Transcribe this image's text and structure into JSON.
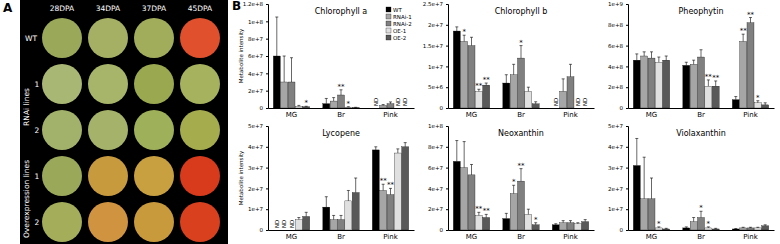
{
  "panel_a": {
    "label": "A",
    "columns": [
      "28DPA",
      "34DPA",
      "37DPA",
      "45DPA"
    ],
    "groups": [
      {
        "name": "WT",
        "lines": []
      },
      {
        "name": "RNAi lines",
        "lines": [
          "1",
          "2"
        ]
      },
      {
        "name": "Overexpression lines",
        "lines": [
          "1",
          "2"
        ]
      }
    ]
  },
  "panel_b": {
    "label": "B"
  },
  "chart_data": [
    {
      "type": "bar",
      "title": "Chlorophyll a",
      "y_label": "Metabolite intensity",
      "legend": "top-right",
      "categories": [
        "MG",
        "Br",
        "Pink"
      ],
      "series": [
        {
          "name": "WT",
          "color": "#000000",
          "values": [
            60000000,
            5000000,
            null
          ],
          "errors": [
            45000000,
            6000000,
            null
          ]
        },
        {
          "name": "RNAi-1",
          "color": "#a6a6a6",
          "values": [
            30000000,
            8000000,
            3000000
          ],
          "errors": [
            30000000,
            4000000,
            1000000
          ]
        },
        {
          "name": "RNAi-2",
          "color": "#808080",
          "values": [
            30000000,
            15000000,
            5000000
          ],
          "errors": [
            28000000,
            6000000,
            2000000
          ]
        },
        {
          "name": "OE-1",
          "color": "#e0e0e0",
          "values": [
            2000000,
            1000000,
            null
          ],
          "errors": [
            1000000,
            500000,
            null
          ]
        },
        {
          "name": "OE-2",
          "color": "#595959",
          "values": [
            1500000,
            500000,
            null
          ],
          "errors": [
            500000,
            300000,
            null
          ]
        }
      ],
      "ylim": [
        0,
        120000000
      ],
      "yticks": [
        0,
        {
          "value": 20000000,
          "label": "2e+7"
        },
        {
          "value": 40000000,
          "label": "4e+7"
        },
        {
          "value": 60000000,
          "label": "6e+7"
        },
        {
          "value": 80000000,
          "label": "8e+7"
        },
        {
          "value": 100000000,
          "label": "1e+8"
        },
        {
          "value": 120000000,
          "label": "1.2e+8"
        }
      ],
      "annotations": [
        {
          "text": "*",
          "category": "MG",
          "series": "OE-2"
        },
        {
          "text": "**",
          "category": "Br",
          "series": "RNAi-2"
        },
        {
          "text": "*",
          "category": "Br",
          "series": "OE-1"
        },
        {
          "text": "ND",
          "category": "Pink",
          "series": "WT"
        },
        {
          "text": "ND",
          "category": "Pink",
          "series": "OE-1"
        },
        {
          "text": "ND",
          "category": "Pink",
          "series": "OE-2"
        }
      ]
    },
    {
      "type": "bar",
      "title": "Chlorophyll b",
      "categories": [
        "MG",
        "Br",
        "Pink"
      ],
      "series": [
        {
          "name": "WT",
          "color": "#000000",
          "values": [
            18500000,
            6000000,
            null
          ],
          "errors": [
            1000000,
            2000000,
            null
          ]
        },
        {
          "name": "RNAi-1",
          "color": "#a6a6a6",
          "values": [
            16000000,
            8000000,
            4000000
          ],
          "errors": [
            1500000,
            2500000,
            3000000
          ]
        },
        {
          "name": "RNAi-2",
          "color": "#808080",
          "values": [
            15000000,
            12000000,
            7500000
          ],
          "errors": [
            2000000,
            3000000,
            3000000
          ]
        },
        {
          "name": "OE-1",
          "color": "#e0e0e0",
          "values": [
            4000000,
            4000000,
            null
          ],
          "errors": [
            500000,
            1000000,
            null
          ]
        },
        {
          "name": "OE-2",
          "color": "#595959",
          "values": [
            5500000,
            1000000,
            null
          ],
          "errors": [
            500000,
            500000,
            null
          ]
        }
      ],
      "ylim": [
        0,
        25000000
      ],
      "yticks": [
        0,
        {
          "value": 5000000,
          "label": "5e+6"
        },
        {
          "value": 10000000,
          "label": "1e+7"
        },
        {
          "value": 15000000,
          "label": "1.5e+7"
        },
        {
          "value": 20000000,
          "label": "2e+7"
        },
        {
          "value": 25000000,
          "label": "2.5e+7"
        }
      ],
      "annotations": [
        {
          "text": "*",
          "category": "MG",
          "series": "RNAi-1"
        },
        {
          "text": "**",
          "category": "MG",
          "series": "OE-1"
        },
        {
          "text": "**",
          "category": "MG",
          "series": "OE-2"
        },
        {
          "text": "*",
          "category": "Br",
          "series": "RNAi-2"
        },
        {
          "text": "ND",
          "category": "Pink",
          "series": "WT"
        },
        {
          "text": "ND",
          "category": "Pink",
          "series": "OE-1"
        },
        {
          "text": "ND",
          "category": "Pink",
          "series": "OE-2"
        }
      ]
    },
    {
      "type": "bar",
      "title": "Pheophytin",
      "categories": [
        "MG",
        "Br",
        "Pink"
      ],
      "series": [
        {
          "name": "WT",
          "color": "#000000",
          "values": [
            460000000,
            410000000,
            80000000
          ],
          "errors": [
            60000000,
            30000000,
            30000000
          ]
        },
        {
          "name": "RNAi-1",
          "color": "#a6a6a6",
          "values": [
            500000000,
            420000000,
            640000000
          ],
          "errors": [
            40000000,
            40000000,
            70000000
          ]
        },
        {
          "name": "RNAi-2",
          "color": "#808080",
          "values": [
            480000000,
            490000000,
            820000000
          ],
          "errors": [
            60000000,
            70000000,
            50000000
          ]
        },
        {
          "name": "OE-1",
          "color": "#e0e0e0",
          "values": [
            440000000,
            210000000,
            50000000
          ],
          "errors": [
            50000000,
            60000000,
            20000000
          ]
        },
        {
          "name": "OE-2",
          "color": "#595959",
          "values": [
            460000000,
            210000000,
            30000000
          ],
          "errors": [
            40000000,
            50000000,
            20000000
          ]
        }
      ],
      "ylim": [
        0,
        1000000000
      ],
      "yticks": [
        0,
        {
          "value": 200000000,
          "label": "2e+8"
        },
        {
          "value": 400000000,
          "label": "4e+8"
        },
        {
          "value": 600000000,
          "label": "6e+8"
        },
        {
          "value": 800000000,
          "label": "8e+8"
        },
        {
          "value": 1000000000,
          "label": "1e+9"
        }
      ],
      "annotations": [
        {
          "text": "**",
          "category": "Br",
          "series": "OE-1"
        },
        {
          "text": "**",
          "category": "Br",
          "series": "OE-2"
        },
        {
          "text": "**",
          "category": "Pink",
          "series": "RNAi-1"
        },
        {
          "text": "**",
          "category": "Pink",
          "series": "RNAi-2"
        },
        {
          "text": "*",
          "category": "Pink",
          "series": "OE-1"
        }
      ]
    },
    {
      "type": "bar",
      "title": "Lycopene",
      "y_label": "Metabolite intensity",
      "categories": [
        "MG",
        "Br",
        "Pink"
      ],
      "series": [
        {
          "name": "WT",
          "color": "#000000",
          "values": [
            null,
            11000000,
            38500000
          ],
          "errors": [
            null,
            5000000,
            1500000
          ]
        },
        {
          "name": "RNAi-1",
          "color": "#a6a6a6",
          "values": [
            null,
            5000000,
            19000000
          ],
          "errors": [
            null,
            2000000,
            3000000
          ]
        },
        {
          "name": "RNAi-2",
          "color": "#808080",
          "values": [
            null,
            5000000,
            17000000
          ],
          "errors": [
            null,
            2000000,
            3000000
          ]
        },
        {
          "name": "OE-1",
          "color": "#e0e0e0",
          "values": [
            5000000,
            14000000,
            37000000
          ],
          "errors": [
            1000000,
            5000000,
            2000000
          ]
        },
        {
          "name": "OE-2",
          "color": "#595959",
          "values": [
            6500000,
            18000000,
            40000000
          ],
          "errors": [
            2000000,
            7000000,
            2000000
          ]
        }
      ],
      "ylim": [
        0,
        50000000
      ],
      "yticks": [
        0,
        {
          "value": 10000000,
          "label": "1e+7"
        },
        {
          "value": 20000000,
          "label": "2e+7"
        },
        {
          "value": 30000000,
          "label": "3e+7"
        },
        {
          "value": 40000000,
          "label": "4e+7"
        },
        {
          "value": 50000000,
          "label": "5e+7"
        }
      ],
      "annotations": [
        {
          "text": "ND",
          "category": "MG",
          "series": "WT"
        },
        {
          "text": "ND",
          "category": "MG",
          "series": "RNAi-1"
        },
        {
          "text": "ND",
          "category": "MG",
          "series": "RNAi-2"
        },
        {
          "text": "**",
          "category": "Pink",
          "series": "RNAi-1"
        },
        {
          "text": "**",
          "category": "Pink",
          "series": "RNAi-2"
        }
      ]
    },
    {
      "type": "bar",
      "title": "Neoxanthin",
      "categories": [
        "MG",
        "Br",
        "Pink"
      ],
      "series": [
        {
          "name": "WT",
          "color": "#000000",
          "values": [
            66000000,
            11000000,
            5000000
          ],
          "errors": [
            20000000,
            5000000,
            1000000
          ]
        },
        {
          "name": "RNAi-1",
          "color": "#a6a6a6",
          "values": [
            60000000,
            35000000,
            7000000
          ],
          "errors": [
            25000000,
            8000000,
            2000000
          ]
        },
        {
          "name": "RNAi-2",
          "color": "#808080",
          "values": [
            53000000,
            47000000,
            7000000
          ],
          "errors": [
            10000000,
            12000000,
            2000000
          ]
        },
        {
          "name": "OE-1",
          "color": "#e0e0e0",
          "values": [
            14000000,
            15000000,
            6000000
          ],
          "errors": [
            3000000,
            5000000,
            1000000
          ]
        },
        {
          "name": "OE-2",
          "color": "#595959",
          "values": [
            12000000,
            5000000,
            8000000
          ],
          "errors": [
            3000000,
            2000000,
            2000000
          ]
        }
      ],
      "ylim": [
        0,
        100000000
      ],
      "yticks": [
        0,
        {
          "value": 20000000,
          "label": "2e+7"
        },
        {
          "value": 40000000,
          "label": "4e+7"
        },
        {
          "value": 60000000,
          "label": "6e+7"
        },
        {
          "value": 80000000,
          "label": "8e+7"
        },
        {
          "value": 100000000,
          "label": "1e+8"
        }
      ],
      "annotations": [
        {
          "text": "**",
          "category": "MG",
          "series": "OE-1"
        },
        {
          "text": "**",
          "category": "MG",
          "series": "OE-2"
        },
        {
          "text": "*",
          "category": "Br",
          "series": "RNAi-1"
        },
        {
          "text": "**",
          "category": "Br",
          "series": "RNAi-2"
        },
        {
          "text": "*",
          "category": "Br",
          "series": "OE-2"
        }
      ]
    },
    {
      "type": "bar",
      "title": "Violaxanthin",
      "categories": [
        "MG",
        "Br",
        "Pink"
      ],
      "series": [
        {
          "name": "WT",
          "color": "#000000",
          "values": [
            31000000,
            1000000,
            500000
          ],
          "errors": [
            13000000,
            500000,
            200000
          ]
        },
        {
          "name": "RNAi-1",
          "color": "#a6a6a6",
          "values": [
            15000000,
            4000000,
            1000000
          ],
          "errors": [
            20000000,
            2000000,
            300000
          ]
        },
        {
          "name": "RNAi-2",
          "color": "#808080",
          "values": [
            15000000,
            6000000,
            1000000
          ],
          "errors": [
            10000000,
            3000000,
            300000
          ]
        },
        {
          "name": "OE-1",
          "color": "#e0e0e0",
          "values": [
            1000000,
            1000000,
            1000000
          ],
          "errors": [
            500000,
            500000,
            300000
          ]
        },
        {
          "name": "OE-2",
          "color": "#595959",
          "values": [
            500000,
            500000,
            2000000
          ],
          "errors": [
            300000,
            300000,
            500000
          ]
        }
      ],
      "ylim": [
        0,
        50000000
      ],
      "yticks": [
        0,
        {
          "value": 10000000,
          "label": "1e+7"
        },
        {
          "value": 20000000,
          "label": "2e+7"
        },
        {
          "value": 30000000,
          "label": "3e+7"
        },
        {
          "value": 40000000,
          "label": "4e+7"
        },
        {
          "value": 50000000,
          "label": "5e+7"
        }
      ],
      "annotations": [
        {
          "text": "*",
          "category": "MG",
          "series": "OE-1"
        },
        {
          "text": "*",
          "category": "Br",
          "series": "RNAi-2"
        },
        {
          "text": "*",
          "category": "Br",
          "series": "OE-1"
        }
      ]
    }
  ]
}
